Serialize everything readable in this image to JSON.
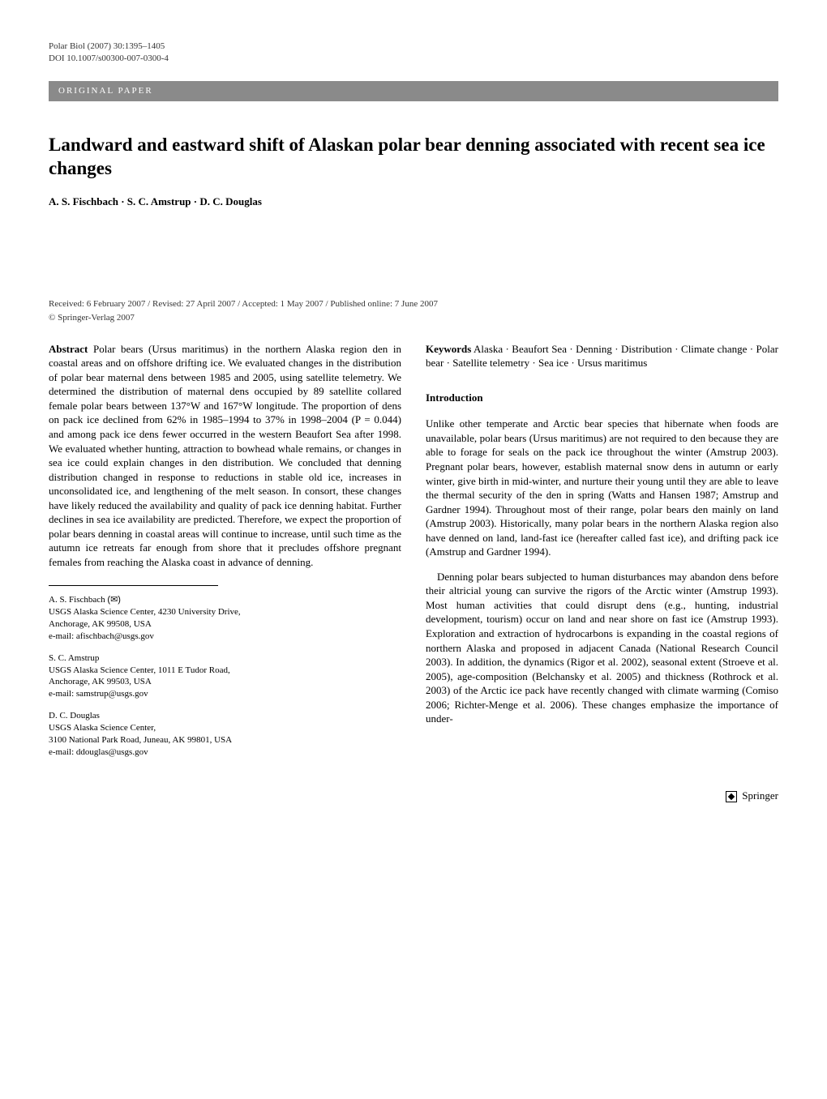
{
  "header": {
    "journal_line": "Polar Biol (2007) 30:1395–1405",
    "doi_line": "DOI 10.1007/s00300-007-0300-4"
  },
  "section_label": "ORIGINAL PAPER",
  "title": "Landward and eastward shift of Alaskan polar bear denning associated with recent sea ice changes",
  "authors": "A. S. Fischbach · S. C. Amstrup · D. C. Douglas",
  "received_line": "Received: 6 February 2007 / Revised: 27 April 2007 / Accepted: 1 May 2007 / Published online: 7 June 2007",
  "copyright_line": "© Springer-Verlag 2007",
  "abstract": {
    "label": "Abstract",
    "text": "Polar bears (Ursus maritimus) in the northern Alaska region den in coastal areas and on offshore drifting ice. We evaluated changes in the distribution of polar bear maternal dens between 1985 and 2005, using satellite telemetry. We determined the distribution of maternal dens occupied by 89 satellite collared female polar bears between 137°W and 167°W longitude. The proportion of dens on pack ice declined from 62% in 1985–1994 to 37% in 1998–2004 (P = 0.044) and among pack ice dens fewer occurred in the western Beaufort Sea after 1998. We evaluated whether hunting, attraction to bowhead whale remains, or changes in sea ice could explain changes in den distribution. We concluded that denning distribution changed in response to reductions in stable old ice, increases in unconsolidated ice, and lengthening of the melt season. In consort, these changes have likely reduced the availability and quality of pack ice denning habitat. Further declines in sea ice availability are predicted. Therefore, we expect the proportion of polar bears denning in coastal areas will continue to increase, until such time as the autumn ice retreats far enough from shore that it precludes offshore pregnant females from reaching the Alaska coast in advance of denning."
  },
  "keywords": {
    "label": "Keywords",
    "text": "Alaska · Beaufort Sea · Denning · Distribution · Climate change · Polar bear · Satellite telemetry · Sea ice · Ursus maritimus"
  },
  "introduction": {
    "heading": "Introduction",
    "p1": "Unlike other temperate and Arctic bear species that hibernate when foods are unavailable, polar bears (Ursus maritimus) are not required to den because they are able to forage for seals on the pack ice throughout the winter (Amstrup 2003). Pregnant polar bears, however, establish maternal snow dens in autumn or early winter, give birth in mid-winter, and nurture their young until they are able to leave the thermal security of the den in spring (Watts and Hansen 1987; Amstrup and Gardner 1994). Throughout most of their range, polar bears den mainly on land (Amstrup 2003). Historically, many polar bears in the northern Alaska region also have denned on land, land-fast ice (hereafter called fast ice), and drifting pack ice (Amstrup and Gardner 1994).",
    "p2": "Denning polar bears subjected to human disturbances may abandon dens before their altricial young can survive the rigors of the Arctic winter (Amstrup 1993). Most human activities that could disrupt dens (e.g., hunting, industrial development, tourism) occur on land and near shore on fast ice (Amstrup 1993). Exploration and extraction of hydrocarbons is expanding in the coastal regions of northern Alaska and proposed in adjacent Canada (National Research Council 2003). In addition, the dynamics (Rigor et al. 2002), seasonal extent (Stroeve et al. 2005), age-composition (Belchansky et al. 2005) and thickness (Rothrock et al. 2003) of the Arctic ice pack have recently changed with climate warming (Comiso 2006; Richter-Menge et al. 2006). These changes emphasize the importance of under-"
  },
  "affiliations": [
    {
      "name": "A. S. Fischbach",
      "corresponding": true,
      "lines": [
        "USGS Alaska Science Center, 4230 University Drive,",
        "Anchorage, AK 99508, USA",
        "e-mail: afischbach@usgs.gov"
      ]
    },
    {
      "name": "S. C. Amstrup",
      "corresponding": false,
      "lines": [
        "USGS Alaska Science Center, 1011 E Tudor Road,",
        "Anchorage, AK 99503, USA",
        "e-mail: samstrup@usgs.gov"
      ]
    },
    {
      "name": "D. C. Douglas",
      "corresponding": false,
      "lines": [
        "USGS Alaska Science Center,",
        "3100 National Park Road, Juneau, AK 99801, USA",
        "e-mail: ddouglas@usgs.gov"
      ]
    }
  ],
  "publisher": "Springer"
}
